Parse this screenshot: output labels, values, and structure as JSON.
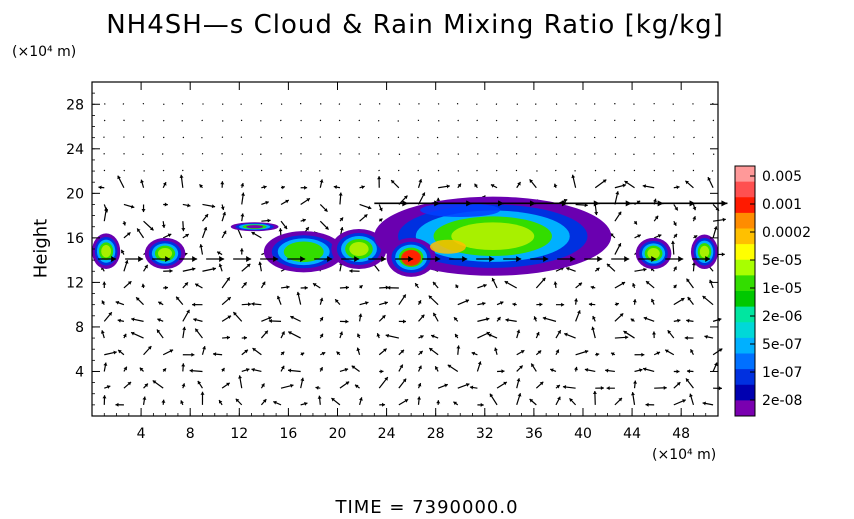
{
  "chart_data": {
    "type": "heatmap",
    "title": "NH4SH—s Cloud & Rain Mixing Ratio [kg/kg]",
    "ylabel": "Height",
    "y_unit": "(×10⁴ m)",
    "x_unit": "(×10⁴ m)",
    "xlim": [
      0,
      51
    ],
    "ylim": [
      0,
      30
    ],
    "x_ticks": [
      4,
      8,
      12,
      16,
      20,
      24,
      28,
      32,
      36,
      40,
      44,
      48
    ],
    "y_ticks": [
      4,
      8,
      12,
      16,
      20,
      24,
      28
    ],
    "footer": "TIME = 7390000.0",
    "colorbar": {
      "levels": [
        "0.005",
        "0.001",
        "0.0002",
        "5e-05",
        "1e-05",
        "2e-06",
        "5e-07",
        "1e-07",
        "2e-08"
      ],
      "colors": [
        "#ff9999",
        "#ff5050",
        "#ff1a00",
        "#ff8c00",
        "#ffc000",
        "#ffff00",
        "#a8ff00",
        "#33dd00",
        "#00c800",
        "#00e6a0",
        "#00d8d8",
        "#00b0ff",
        "#0070ff",
        "#0030e0",
        "#0000b0",
        "#7a00b0"
      ]
    },
    "cloud_regions": [
      {
        "x": [
          0,
          2.3
        ],
        "y": [
          13.2,
          16.4
        ],
        "level": "5e-05"
      },
      {
        "x": [
          4.3,
          7.6
        ],
        "y": [
          13.2,
          16.0
        ],
        "level": "5e-05"
      },
      {
        "x": [
          11.3,
          15.2
        ],
        "y": [
          16.6,
          17.4
        ],
        "level": "2e-08"
      },
      {
        "x": [
          14.0,
          20.5
        ],
        "y": [
          12.9,
          16.6
        ],
        "level": "1e-05"
      },
      {
        "x": [
          19.5,
          24.0
        ],
        "y": [
          13.2,
          16.8
        ],
        "level": "5e-05"
      },
      {
        "x": [
          23.0,
          42.3
        ],
        "y": [
          12.6,
          19.7
        ],
        "level": "5e-05"
      },
      {
        "x": [
          24.0,
          28.0
        ],
        "y": [
          12.5,
          16.0
        ],
        "level": "0.001"
      },
      {
        "x": [
          44.3,
          47.2
        ],
        "y": [
          13.2,
          16.0
        ],
        "level": "5e-05"
      },
      {
        "x": [
          48.8,
          51.0
        ],
        "y": [
          13.2,
          16.3
        ],
        "level": "5e-05"
      }
    ]
  }
}
